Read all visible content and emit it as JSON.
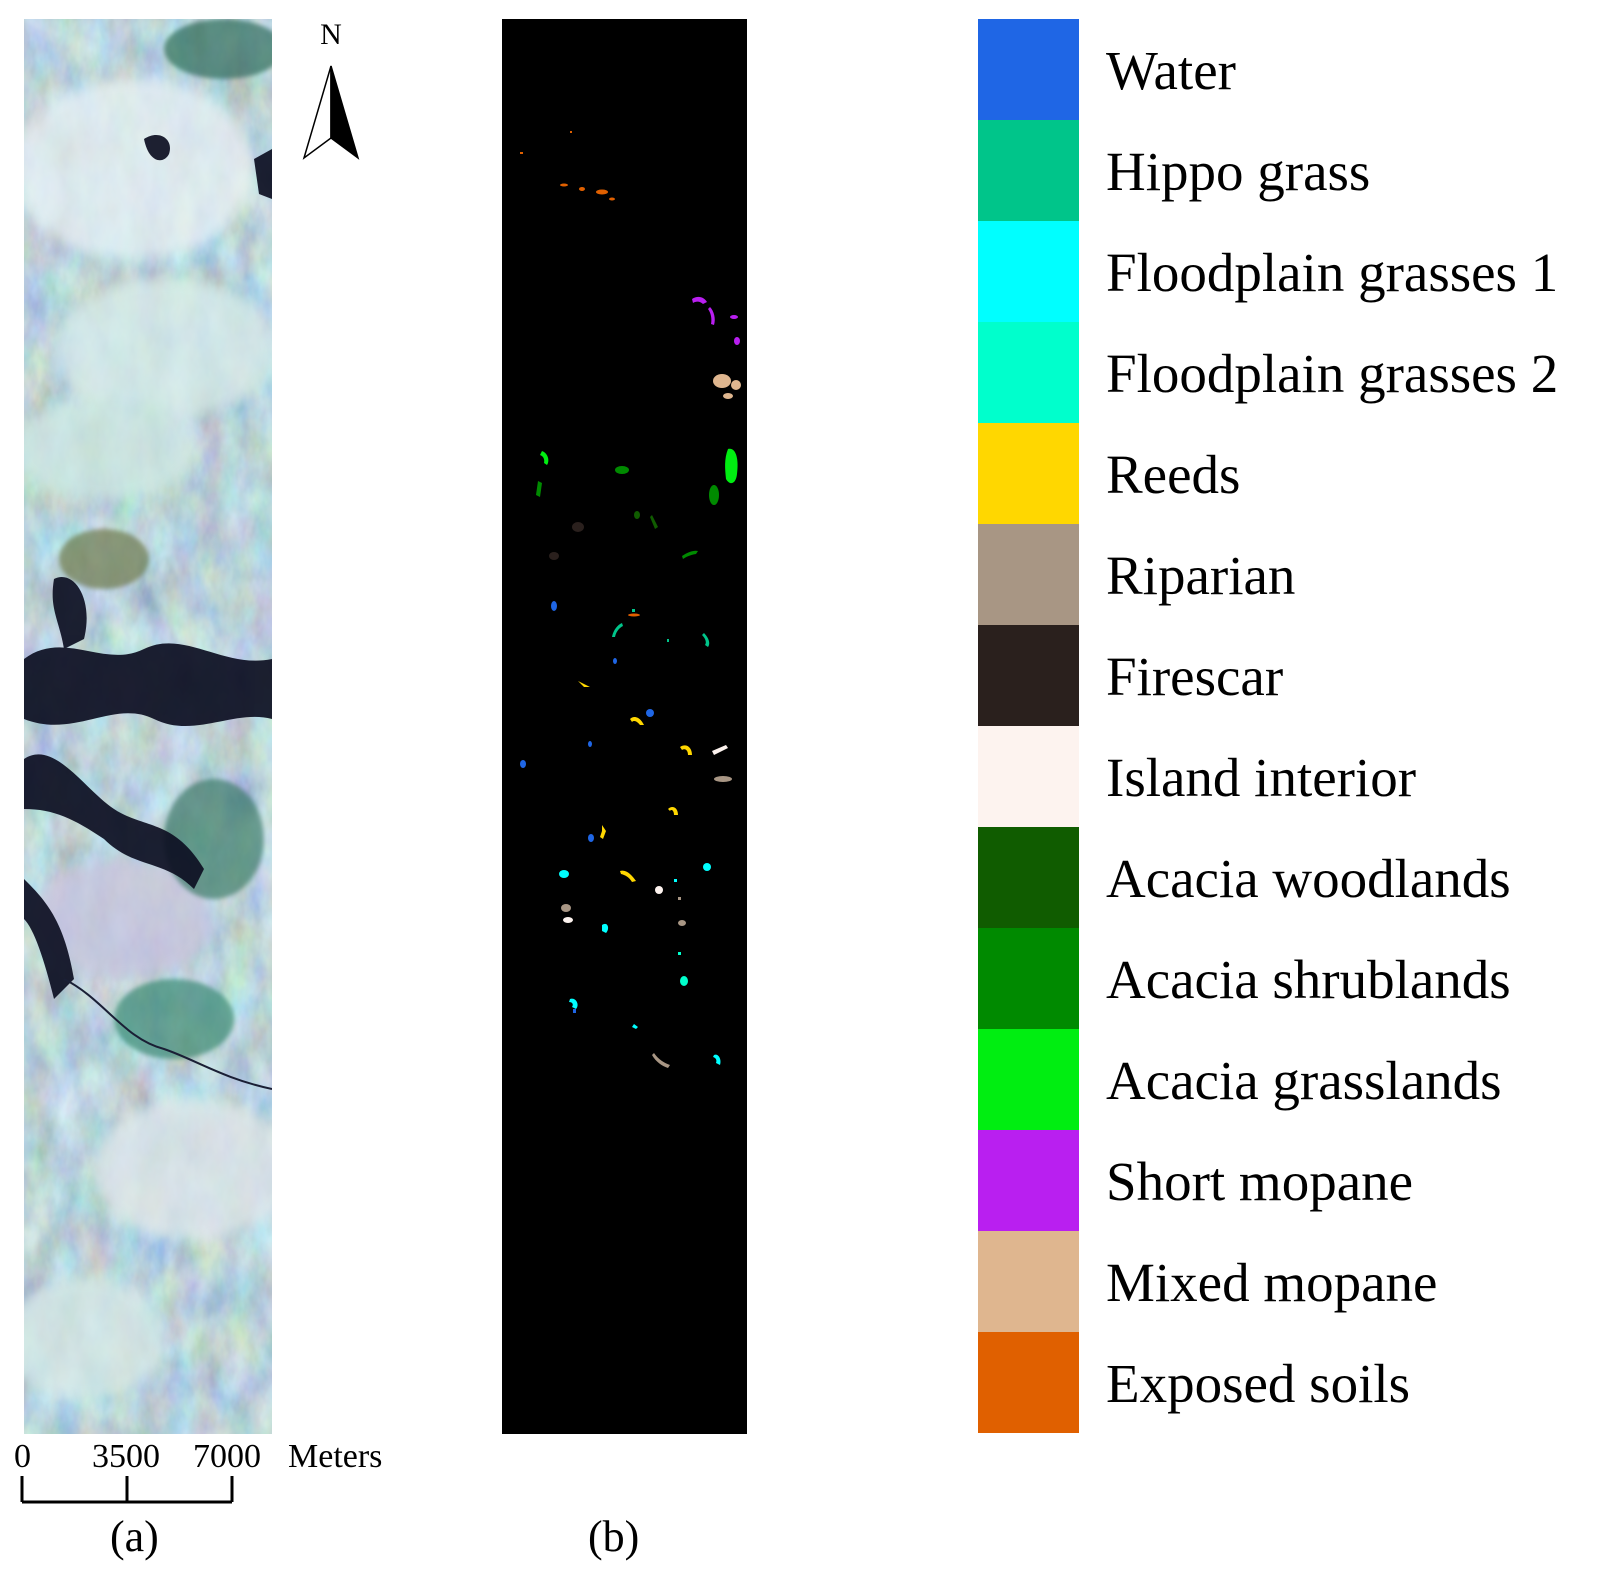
{
  "figure": {
    "panel_a_label": "(a)",
    "panel_b_label": "(b)",
    "north_label": "N",
    "scale": {
      "ticks": [
        "0",
        "3500",
        "7000"
      ],
      "unit": "Meters"
    }
  },
  "legend": {
    "items": [
      {
        "label": "Water",
        "color": "#1f66e5"
      },
      {
        "label": "Hippo grass",
        "color": "#00c58a"
      },
      {
        "label": "Floodplain grasses 1",
        "color": "#00ffff"
      },
      {
        "label": "Floodplain grasses 2",
        "color": "#00ffcc"
      },
      {
        "label": "Reeds",
        "color": "#ffd700"
      },
      {
        "label": "Riparian",
        "color": "#a89684"
      },
      {
        "label": "Firescar",
        "color": "#2a201d"
      },
      {
        "label": "Island interior",
        "color": "#fdf3ef"
      },
      {
        "label": "Acacia woodlands",
        "color": "#105c00"
      },
      {
        "label": "Acacia shrublands",
        "color": "#008a00"
      },
      {
        "label": "Acacia grasslands",
        "color": "#00ee11"
      },
      {
        "label": "Short mopane",
        "color": "#b91ff0"
      },
      {
        "label": "Mixed mopane",
        "color": "#dfb68f"
      },
      {
        "label": "Exposed soils",
        "color": "#e06000"
      }
    ]
  }
}
